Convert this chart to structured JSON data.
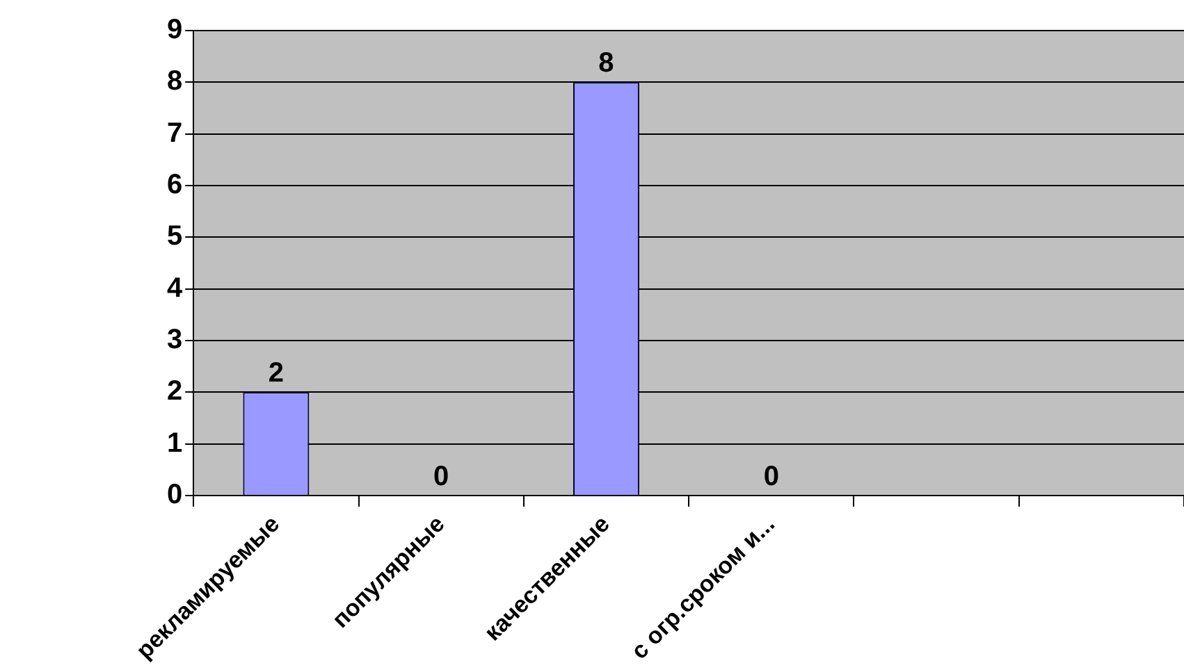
{
  "chart_data": {
    "type": "bar",
    "categories": [
      "рекламируемые",
      "популярные",
      "качественные",
      "с огр.сроком и...",
      null,
      null
    ],
    "values": [
      2,
      0,
      8,
      0,
      null,
      null
    ],
    "color": "#9999ff",
    "ylim": [
      0,
      9
    ],
    "yticks": [
      0,
      1,
      2,
      3,
      4,
      5,
      6,
      7,
      8,
      9
    ],
    "grid": "y",
    "legend": false,
    "data_labels": true
  }
}
